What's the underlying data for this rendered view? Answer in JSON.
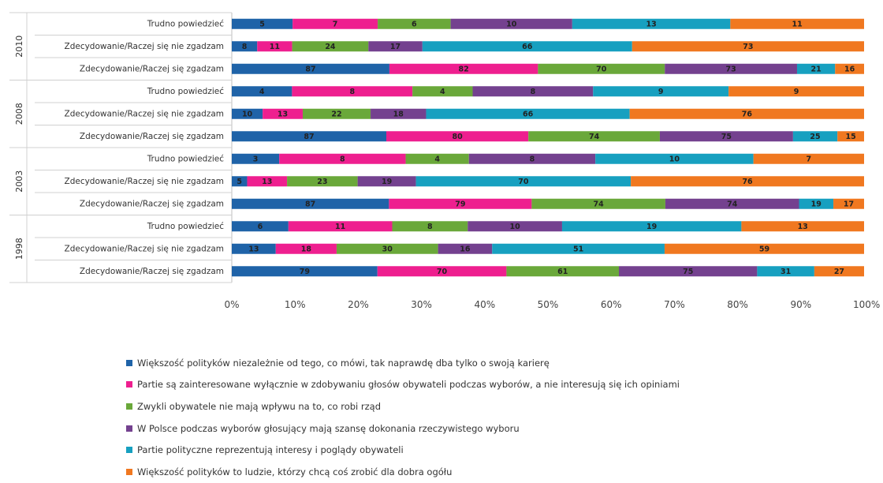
{
  "chart_data": {
    "type": "bar",
    "stacked": "percent",
    "orientation": "horizontal",
    "title": "",
    "xlabel": "",
    "ylabel": "",
    "xlim": [
      0,
      100
    ],
    "x_ticks": [
      "0%",
      "10%",
      "20%",
      "30%",
      "40%",
      "50%",
      "60%",
      "70%",
      "80%",
      "90%",
      "100%"
    ],
    "grid": false,
    "legend_position": "bottom",
    "colors": [
      "#1f63a8",
      "#ee1f8f",
      "#6aa83a",
      "#74418f",
      "#17a0c0",
      "#f07820"
    ],
    "groups": [
      {
        "label": "2010",
        "rows": [
          "Trudno powiedzieć",
          "Zdecydowanie/Raczej się nie zgadzam",
          "Zdecydowanie/Raczej się zgadzam"
        ]
      },
      {
        "label": "2008",
        "rows": [
          "Trudno powiedzieć",
          "Zdecydowanie/Raczej się nie zgadzam",
          "Zdecydowanie/Raczej się zgadzam"
        ]
      },
      {
        "label": "2003",
        "rows": [
          "Trudno powiedzieć",
          "Zdecydowanie/Raczej się nie zgadzam",
          "Zdecydowanie/Raczej się zgadzam"
        ]
      },
      {
        "label": "1998",
        "rows": [
          "Trudno powiedzieć",
          "Zdecydowanie/Raczej się nie zgadzam",
          "Zdecydowanie/Raczej się zgadzam"
        ]
      }
    ],
    "series": [
      {
        "name": "Większość polityków niezależnie od tego, co mówi, tak naprawdę dba tylko o swoją karierę",
        "values": [
          5,
          8,
          87,
          4,
          10,
          87,
          3,
          5,
          87,
          6,
          13,
          79
        ]
      },
      {
        "name": "Partie są zainteresowane wyłącznie w zdobywaniu głosów obywateli podczas wyborów, a nie interesują się ich opiniami",
        "values": [
          7,
          11,
          82,
          8,
          13,
          80,
          8,
          13,
          79,
          11,
          18,
          70
        ]
      },
      {
        "name": "Zwykli obywatele nie mają wpływu na to, co robi rząd",
        "values": [
          6,
          24,
          70,
          4,
          22,
          74,
          4,
          23,
          74,
          8,
          30,
          61
        ]
      },
      {
        "name": "W Polsce podczas wyborów głosujący mają szansę dokonania rzeczywistego wyboru",
        "values": [
          10,
          17,
          73,
          8,
          18,
          75,
          8,
          19,
          74,
          10,
          16,
          75
        ]
      },
      {
        "name": "Partie polityczne reprezentują interesy i poglądy obywateli",
        "values": [
          13,
          66,
          21,
          9,
          66,
          25,
          10,
          70,
          19,
          19,
          51,
          31
        ]
      },
      {
        "name": "Większość polityków to ludzie, którzy chcą coś zrobić dla dobra ogółu",
        "values": [
          11,
          73,
          16,
          9,
          76,
          15,
          7,
          76,
          17,
          13,
          59,
          27
        ]
      }
    ]
  }
}
